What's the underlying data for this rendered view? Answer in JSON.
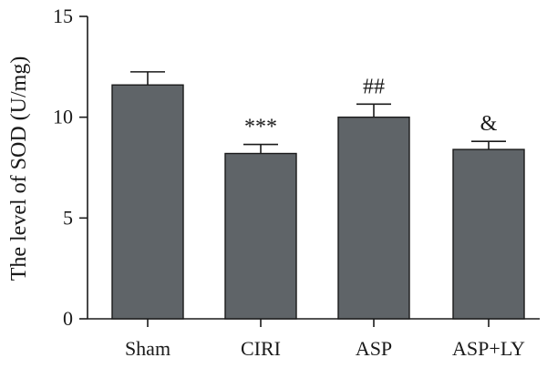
{
  "chart_data": {
    "type": "bar",
    "title": "",
    "xlabel": "",
    "ylabel": "The level of SOD (U/mg)",
    "categories": [
      "Sham",
      "CIRI",
      "ASP",
      "ASP+LY"
    ],
    "values": [
      11.6,
      8.2,
      10.0,
      8.4
    ],
    "errors": [
      0.65,
      0.45,
      0.65,
      0.4
    ],
    "annotations": [
      "",
      "***",
      "##",
      "&"
    ],
    "ylim": [
      0,
      15
    ],
    "yticks": [
      "0",
      "5",
      "10",
      "15"
    ],
    "grid": false,
    "legend": "none",
    "colors": {
      "bar": "#5f6468",
      "axis": "#1a1a1a"
    }
  }
}
